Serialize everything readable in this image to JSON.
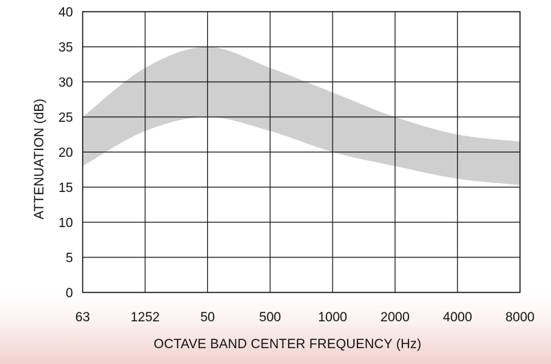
{
  "chart_data": {
    "type": "area",
    "title": "",
    "xlabel": "OCTAVE BAND CENTER FREQUENCY (Hz)",
    "ylabel": "ATTENUATION (dB)",
    "categories": [
      "63",
      "1252",
      "50",
      "500",
      "1000",
      "2000",
      "4000",
      "8000"
    ],
    "ylim": [
      0,
      40
    ],
    "yticks": [
      0,
      5,
      10,
      15,
      20,
      25,
      30,
      35,
      40
    ],
    "grid": true,
    "legend": "none",
    "series": [
      {
        "upper": [
          25,
          32,
          35,
          32,
          28.5,
          25,
          22.5,
          21.5
        ],
        "lower": [
          18,
          23,
          25,
          23,
          20,
          18,
          16.2,
          15.3
        ]
      }
    ],
    "colors": {
      "band": "#cfcfd0",
      "grid": "#111111",
      "text": "#111111"
    }
  }
}
